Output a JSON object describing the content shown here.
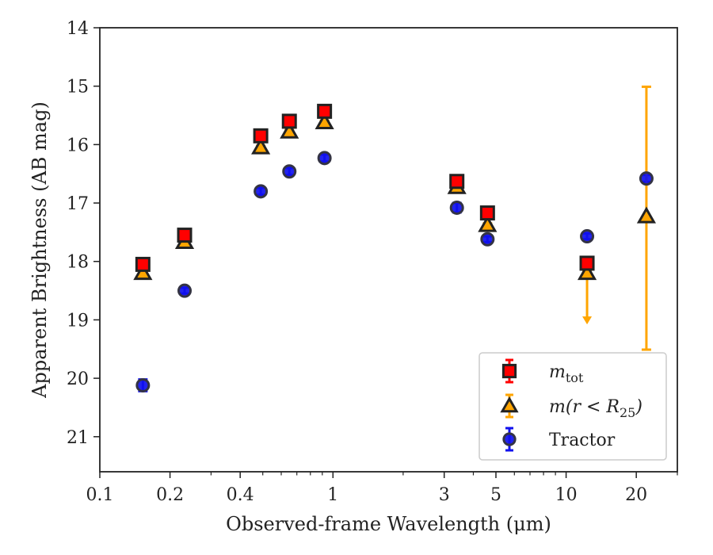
{
  "chart_data": {
    "type": "scatter",
    "xlabel": "Observed-frame Wavelength (μm)",
    "ylabel": "Apparent Brightness (AB mag)",
    "xscale": "log",
    "xlim": [
      0.1,
      30
    ],
    "ylim": [
      21.6,
      14.0
    ],
    "y_inverted": true,
    "x_ticks": [
      {
        "value": 0.1,
        "label": "0.1"
      },
      {
        "value": 0.2,
        "label": "0.2"
      },
      {
        "value": 0.4,
        "label": "0.4"
      },
      {
        "value": 1,
        "label": "1"
      },
      {
        "value": 3,
        "label": "3"
      },
      {
        "value": 5,
        "label": "5"
      },
      {
        "value": 10,
        "label": "10"
      },
      {
        "value": 20,
        "label": "20"
      }
    ],
    "y_ticks": [
      {
        "value": 14,
        "label": "14"
      },
      {
        "value": 15,
        "label": "15"
      },
      {
        "value": 16,
        "label": "16"
      },
      {
        "value": 17,
        "label": "17"
      },
      {
        "value": 18,
        "label": "18"
      },
      {
        "value": 19,
        "label": "19"
      },
      {
        "value": 20,
        "label": "20"
      },
      {
        "value": 21,
        "label": "21"
      }
    ],
    "legend_position": "lower right",
    "grid": false,
    "series": [
      {
        "key": "mtot",
        "name_base": "m",
        "name_sub": "tot",
        "marker": "square",
        "color": "#ff0000",
        "edge_color": "#222222",
        "err_color": "#ff0000",
        "points": [
          {
            "x": 0.153,
            "y": 18.05,
            "err": 0.04
          },
          {
            "x": 0.231,
            "y": 17.55,
            "err": 0.04
          },
          {
            "x": 0.49,
            "y": 15.85,
            "err": 0.03
          },
          {
            "x": 0.65,
            "y": 15.6,
            "err": 0.03
          },
          {
            "x": 0.92,
            "y": 15.43,
            "err": 0.03
          },
          {
            "x": 3.4,
            "y": 16.63,
            "err": 0.03
          },
          {
            "x": 4.6,
            "y": 17.17,
            "err": 0.03
          },
          {
            "x": 12.3,
            "y": 18.03,
            "err": 0.04
          }
        ]
      },
      {
        "key": "mr25",
        "name_base": "m(r < R",
        "name_sub": "25",
        "name_suffix": ")",
        "marker": "triangle",
        "color": "#ffa500",
        "edge_color": "#222222",
        "err_color": "#ffa500",
        "points": [
          {
            "x": 0.153,
            "y": 18.2,
            "err": 0.04
          },
          {
            "x": 0.231,
            "y": 17.67,
            "err": 0.04
          },
          {
            "x": 0.49,
            "y": 16.05,
            "err": 0.03
          },
          {
            "x": 0.65,
            "y": 15.78,
            "err": 0.03
          },
          {
            "x": 0.92,
            "y": 15.62,
            "err": 0.03
          },
          {
            "x": 3.4,
            "y": 16.73,
            "err": 0.03
          },
          {
            "x": 4.6,
            "y": 17.38,
            "err": 0.03
          },
          {
            "x": 12.3,
            "y": 18.2,
            "err_up": 0.05,
            "upper_limit_to": 19.05
          },
          {
            "x": 22.1,
            "y": 17.23,
            "err_low": 2.28,
            "err_high": 2.22
          }
        ]
      },
      {
        "key": "tractor",
        "name_base": "Tractor",
        "marker": "circle",
        "color": "#1010ee",
        "edge_color": "#333344",
        "err_color": "#1010ee",
        "points": [
          {
            "x": 0.153,
            "y": 20.12,
            "err": 0.1
          },
          {
            "x": 0.231,
            "y": 18.5,
            "err": 0.05
          },
          {
            "x": 0.49,
            "y": 16.8,
            "err": 0.06
          },
          {
            "x": 0.65,
            "y": 16.46,
            "err": 0.06
          },
          {
            "x": 0.92,
            "y": 16.23,
            "err": 0.06
          },
          {
            "x": 3.4,
            "y": 17.08,
            "err": 0.08
          },
          {
            "x": 4.6,
            "y": 17.62,
            "err": 0.05
          },
          {
            "x": 12.3,
            "y": 17.57,
            "err": 0.05
          },
          {
            "x": 22.1,
            "y": 16.58,
            "err": 0.06
          }
        ]
      }
    ]
  }
}
